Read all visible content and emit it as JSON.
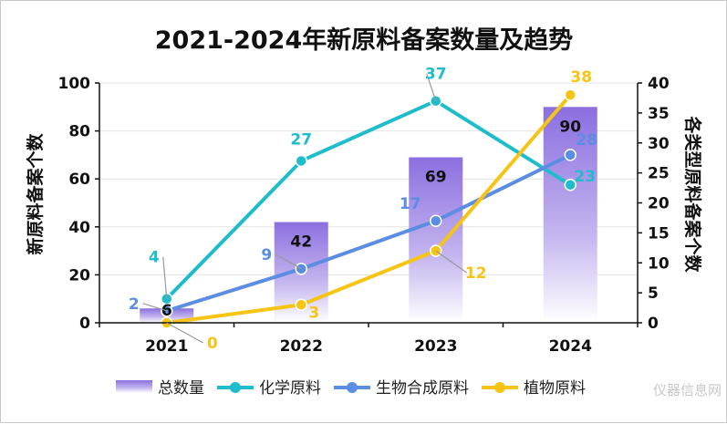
{
  "chart_data": {
    "type": "bar",
    "title": "2021-2024年新原料备案数量及趋势",
    "ylabel": "新原料备案个数",
    "y2label": "各类型原料备案个数",
    "categories": [
      "2021",
      "2022",
      "2023",
      "2024"
    ],
    "ylim": [
      0,
      100
    ],
    "yticks": [
      0,
      20,
      40,
      60,
      80,
      100
    ],
    "y2lim": [
      0,
      40
    ],
    "y2ticks": [
      0,
      5,
      10,
      15,
      20,
      25,
      30,
      35,
      40
    ],
    "grid": true,
    "legend_position": "bottom",
    "series": [
      {
        "name": "总数量",
        "type": "bar",
        "axis": "left",
        "values": [
          6,
          42,
          69,
          90
        ],
        "color": "#8b6fe0"
      },
      {
        "name": "化学原料",
        "type": "line",
        "axis": "right",
        "values": [
          4,
          27,
          37,
          23
        ],
        "color": "#1fbccb"
      },
      {
        "name": "生物合成原料",
        "type": "line",
        "axis": "right",
        "values": [
          2,
          9,
          17,
          28
        ],
        "color": "#5b8de3"
      },
      {
        "name": "植物原料",
        "type": "line",
        "axis": "right",
        "values": [
          0,
          3,
          12,
          38
        ],
        "color": "#f6c414"
      }
    ]
  },
  "watermark": "仪器信息网"
}
